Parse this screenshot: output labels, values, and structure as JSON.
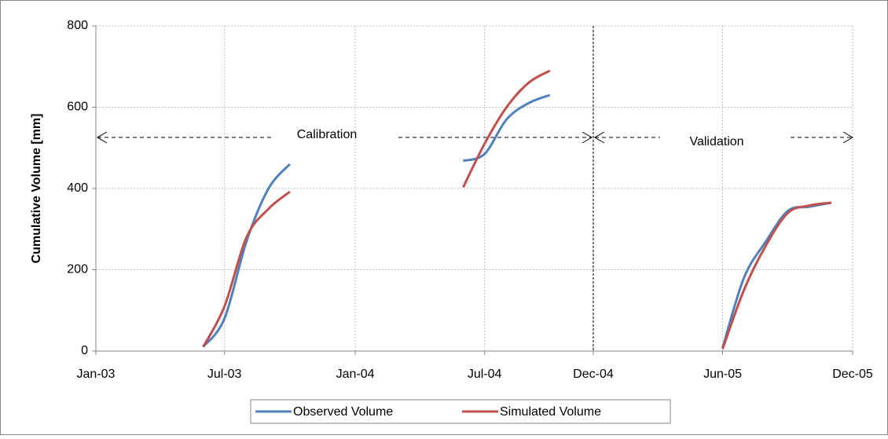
{
  "chart_data": {
    "type": "line",
    "y_label": "Cumulative Volume [mm]",
    "x": [
      "2003-06",
      "2003-07",
      "2003-08",
      "2003-09",
      "2003-10",
      "2003-11",
      "2004-06",
      "2004-07",
      "2004-08",
      "2004-09",
      "2004-10",
      "2004-11",
      "2005-06",
      "2005-07",
      "2005-08",
      "2005-09",
      "2005-10",
      "2005-11"
    ],
    "series": [
      {
        "name": "Observed Volume",
        "color": "#4f81bd",
        "values": [
          10,
          80,
          270,
          400,
          460,
          null,
          468,
          485,
          570,
          610,
          630,
          null,
          8,
          180,
          270,
          345,
          355,
          365
        ]
      },
      {
        "name": "Simulated Volume",
        "color": "#c0504d",
        "values": [
          10,
          110,
          280,
          350,
          392,
          null,
          403,
          510,
          600,
          660,
          690,
          null,
          5,
          150,
          260,
          340,
          358,
          365
        ]
      }
    ],
    "xlim": [
      "2003-01",
      "2005-12"
    ],
    "xticks": [
      {
        "value": "2003-01",
        "label": "Jan-03"
      },
      {
        "value": "2003-07",
        "label": "Jul-03"
      },
      {
        "value": "2004-01",
        "label": "Jan-04"
      },
      {
        "value": "2004-07",
        "label": "Jul-04"
      },
      {
        "value": "2004-12",
        "label": "Dec-04"
      },
      {
        "value": "2005-06",
        "label": "Jun-05"
      },
      {
        "value": "2005-12",
        "label": "Dec-05"
      }
    ],
    "ylim": [
      0,
      800
    ],
    "yticks": [
      0,
      200,
      400,
      600,
      800
    ],
    "grid": true,
    "legend": "bottom",
    "annotations": [
      "Calibration",
      "Validation"
    ]
  }
}
